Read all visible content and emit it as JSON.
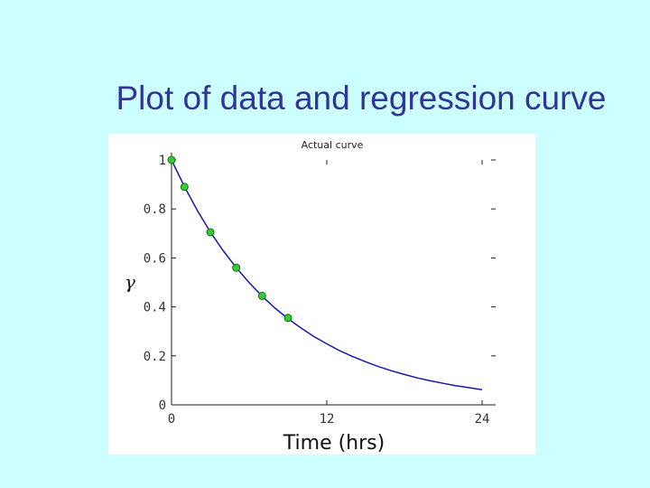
{
  "slide": {
    "title": "Plot of data and regression curve"
  },
  "colors": {
    "background": "#ccffff",
    "title": "#333399",
    "curve": "#1a1aa6",
    "marker_fill": "#33cc33",
    "marker_edge": "#1a6b1a"
  },
  "chart_data": {
    "type": "scatter",
    "title": "Actual curve",
    "xlabel": "Time (hrs)",
    "ylabel": "γ",
    "xlim": [
      0,
      24
    ],
    "ylim": [
      0,
      1
    ],
    "xticks": [
      0,
      12,
      24
    ],
    "yticks": [
      0,
      0.2,
      0.4,
      0.6,
      0.8,
      1
    ],
    "xtick_labels": [
      "0",
      "12",
      "24"
    ],
    "ytick_labels": [
      "0",
      "0.2",
      "0.4",
      "0.6",
      "0.8",
      "1"
    ],
    "grid": false,
    "series": [
      {
        "kind": "points",
        "x": [
          0,
          1,
          3,
          5,
          7,
          9
        ],
        "y": [
          1.0,
          0.89,
          0.705,
          0.56,
          0.445,
          0.355
        ]
      },
      {
        "kind": "line",
        "x": [
          0,
          1,
          2,
          3,
          4,
          5,
          6,
          7,
          8,
          9,
          10,
          11,
          12,
          13,
          14,
          15,
          16,
          17,
          18,
          19,
          20,
          21,
          22,
          23,
          24
        ],
        "y": [
          1.0,
          0.891,
          0.793,
          0.706,
          0.629,
          0.56,
          0.499,
          0.444,
          0.395,
          0.352,
          0.314,
          0.279,
          0.249,
          0.221,
          0.197,
          0.176,
          0.156,
          0.139,
          0.124,
          0.11,
          0.098,
          0.088,
          0.078,
          0.07,
          0.062
        ]
      }
    ]
  }
}
